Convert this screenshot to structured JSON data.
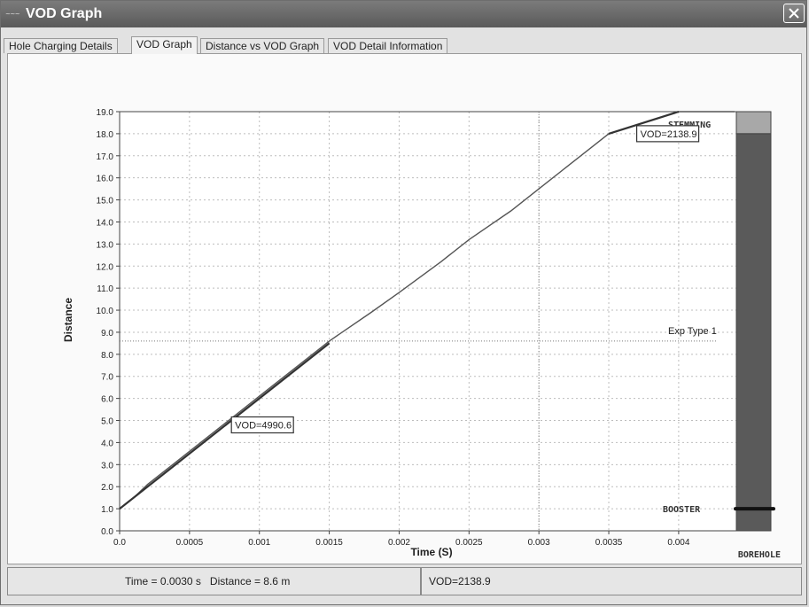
{
  "window": {
    "title": "VOD Graph",
    "app_icon_label": "~~~"
  },
  "tabs": [
    {
      "label": "Hole Charging Details",
      "active": false
    },
    {
      "label": "VOD Graph",
      "active": true
    },
    {
      "label": "Distance vs VOD Graph",
      "active": false
    },
    {
      "label": "VOD Detail Information",
      "active": false
    }
  ],
  "status": {
    "position_text": "Time = 0.0030 s   Distance = 8.6 m",
    "vod_text": "VOD=2138.9"
  },
  "colors": {
    "trace": "#555555",
    "trace_bold": "#333333",
    "borehole_fill": "#5a5a5a",
    "stemming_fill": "#a8a8a8",
    "booster": "#111111"
  },
  "chart_data": {
    "type": "line",
    "xlabel": "Time (S)",
    "ylabel": "Distance",
    "xlim": [
      0,
      0.0044
    ],
    "ylim": [
      0,
      19
    ],
    "x_ticks": [
      "0.0",
      "0.0005",
      "0.001",
      "0.0015",
      "0.002",
      "0.0025",
      "0.003",
      "0.0035",
      "0.004"
    ],
    "x_tick_values": [
      0,
      0.0005,
      0.001,
      0.0015,
      0.002,
      0.0025,
      0.003,
      0.0035,
      0.004
    ],
    "y_ticks": [
      "0.0",
      "1.0",
      "2.0",
      "3.0",
      "4.0",
      "5.0",
      "6.0",
      "7.0",
      "8.0",
      "9.0",
      "10.0",
      "11.0",
      "12.0",
      "13.0",
      "14.0",
      "15.0",
      "16.0",
      "17.0",
      "18.0",
      "19.0"
    ],
    "grid": true,
    "series": [
      {
        "x": [
          0,
          5e-05,
          0.0001,
          0.0002,
          0.0004,
          0.0006,
          0.0008,
          0.001,
          0.0012,
          0.0015,
          0.0018,
          0.002,
          0.0023,
          0.0025,
          0.0028,
          0.003,
          0.0032,
          0.0034,
          0.0035,
          0.0037,
          0.0039,
          0.004,
          0.0044
        ],
        "y": [
          1.0,
          1.25,
          1.5,
          2.1,
          3.1,
          4.1,
          5.1,
          6.1,
          7.1,
          8.6,
          9.9,
          10.8,
          12.2,
          13.2,
          14.5,
          15.5,
          16.5,
          17.5,
          18.0,
          18.4,
          18.8,
          19.0,
          19.0
        ]
      }
    ],
    "annotations": [
      {
        "text": "VOD=4990.6",
        "x": 0.0008,
        "y": 4.6
      },
      {
        "text": "VOD=2138.9",
        "x": 0.0037,
        "y": 17.8
      }
    ],
    "cursor": {
      "x": 0.003,
      "y": 8.6
    },
    "explosive_zone_label": "Exp Type 1",
    "stemming_label": "STEMMING",
    "stemming_from": 18.0,
    "booster_label": "BOOSTER",
    "booster_depth": 1.0,
    "borehole_label": "BOREHOLE"
  }
}
